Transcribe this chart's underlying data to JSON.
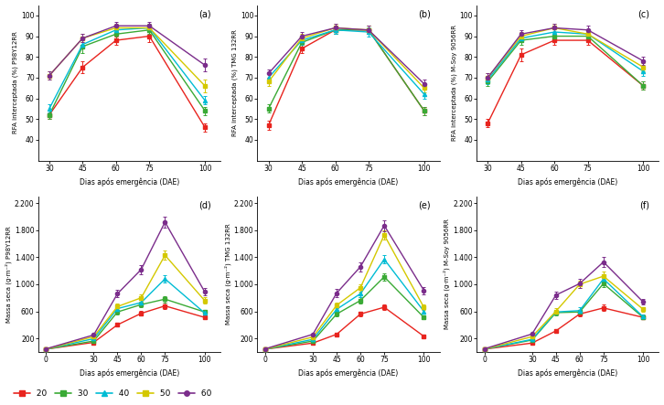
{
  "colors": {
    "20": "#e8241e",
    "30": "#3aaa35",
    "40": "#00bcd4",
    "50": "#d4c800",
    "60": "#7b2d8b"
  },
  "markers": {
    "20": "s",
    "30": "s",
    "40": "^",
    "50": "s",
    "60": "o"
  },
  "densities": [
    "20",
    "30",
    "40",
    "50",
    "60"
  ],
  "rfa_xvals": [
    30,
    45,
    60,
    75,
    100
  ],
  "ms_xvals": [
    0,
    30,
    45,
    60,
    75,
    100
  ],
  "rfa_a": {
    "20": [
      52,
      75,
      88,
      90,
      46
    ],
    "30": [
      52,
      85,
      91,
      93,
      54
    ],
    "40": [
      55,
      86,
      93,
      94,
      59
    ],
    "50": [
      71,
      89,
      94,
      94,
      66
    ],
    "60": [
      71,
      89,
      95,
      95,
      76
    ]
  },
  "rfa_a_err": {
    "20": [
      2,
      3,
      2,
      3,
      2
    ],
    "30": [
      2,
      3,
      2,
      2,
      2
    ],
    "40": [
      2,
      2,
      2,
      2,
      2
    ],
    "50": [
      2,
      2,
      2,
      2,
      3
    ],
    "60": [
      2,
      2,
      2,
      2,
      3
    ]
  },
  "rfa_b": {
    "20": [
      47,
      84,
      93,
      93,
      54
    ],
    "30": [
      55,
      87,
      93,
      93,
      54
    ],
    "40": [
      70,
      88,
      93,
      92,
      62
    ],
    "50": [
      68,
      89,
      94,
      93,
      65
    ],
    "60": [
      72,
      90,
      94,
      93,
      67
    ]
  },
  "rfa_b_err": {
    "20": [
      2,
      2,
      2,
      2,
      2
    ],
    "30": [
      2,
      2,
      2,
      2,
      2
    ],
    "40": [
      2,
      2,
      2,
      2,
      2
    ],
    "50": [
      2,
      2,
      2,
      2,
      2
    ],
    "60": [
      2,
      2,
      2,
      2,
      2
    ]
  },
  "rfa_c": {
    "20": [
      48,
      81,
      88,
      88,
      66
    ],
    "30": [
      68,
      88,
      90,
      90,
      66
    ],
    "40": [
      69,
      89,
      92,
      91,
      73
    ],
    "50": [
      70,
      90,
      94,
      91,
      75
    ],
    "60": [
      70,
      91,
      94,
      93,
      78
    ]
  },
  "rfa_c_err": {
    "20": [
      2,
      3,
      2,
      2,
      2
    ],
    "30": [
      2,
      2,
      2,
      2,
      2
    ],
    "40": [
      2,
      2,
      2,
      2,
      2
    ],
    "50": [
      2,
      2,
      2,
      2,
      2
    ],
    "60": [
      2,
      2,
      2,
      2,
      2
    ]
  },
  "ms_d": {
    "20": [
      40,
      140,
      400,
      570,
      680,
      510
    ],
    "30": [
      40,
      160,
      590,
      700,
      780,
      590
    ],
    "40": [
      40,
      195,
      640,
      730,
      1080,
      575
    ],
    "50": [
      40,
      225,
      670,
      800,
      1430,
      760
    ],
    "60": [
      45,
      250,
      860,
      1220,
      1920,
      890
    ]
  },
  "ms_d_err": {
    "20": [
      5,
      15,
      25,
      35,
      45,
      25
    ],
    "30": [
      5,
      15,
      35,
      40,
      45,
      35
    ],
    "40": [
      5,
      15,
      35,
      45,
      55,
      35
    ],
    "50": [
      5,
      15,
      45,
      55,
      70,
      45
    ],
    "60": [
      5,
      15,
      55,
      70,
      80,
      55
    ]
  },
  "ms_e": {
    "20": [
      40,
      130,
      260,
      560,
      660,
      230
    ],
    "30": [
      40,
      160,
      560,
      760,
      1110,
      510
    ],
    "40": [
      40,
      185,
      630,
      860,
      1370,
      600
    ],
    "50": [
      40,
      220,
      690,
      950,
      1730,
      660
    ],
    "60": [
      45,
      260,
      870,
      1260,
      1870,
      910
    ]
  },
  "ms_e_err": {
    "20": [
      5,
      15,
      25,
      35,
      45,
      15
    ],
    "30": [
      5,
      15,
      35,
      45,
      55,
      25
    ],
    "40": [
      5,
      15,
      35,
      55,
      60,
      35
    ],
    "50": [
      5,
      15,
      45,
      55,
      70,
      45
    ],
    "60": [
      5,
      15,
      55,
      70,
      80,
      55
    ]
  },
  "ms_f": {
    "20": [
      40,
      130,
      310,
      560,
      650,
      510
    ],
    "30": [
      40,
      175,
      580,
      590,
      1010,
      510
    ],
    "40": [
      40,
      185,
      590,
      610,
      1080,
      520
    ],
    "50": [
      40,
      225,
      600,
      1000,
      1120,
      630
    ],
    "60": [
      45,
      265,
      840,
      1010,
      1330,
      740
    ]
  },
  "ms_f_err": {
    "20": [
      5,
      15,
      25,
      35,
      45,
      25
    ],
    "30": [
      5,
      15,
      35,
      35,
      45,
      25
    ],
    "40": [
      5,
      15,
      35,
      45,
      55,
      35
    ],
    "50": [
      5,
      15,
      45,
      55,
      65,
      35
    ],
    "60": [
      5,
      15,
      55,
      65,
      75,
      45
    ]
  },
  "rfa_ylim": [
    30,
    105
  ],
  "rfa_yticks": [
    40,
    50,
    60,
    70,
    80,
    90,
    100
  ],
  "ms_ylim": [
    0,
    2300
  ],
  "ms_yticks": [
    200,
    600,
    1000,
    1400,
    1800,
    2200
  ],
  "ylabel_rfa_a": "RFA interceptada (%) P98Y12RR",
  "ylabel_rfa_b": "RFA interceptada (%) TMG 132RR",
  "ylabel_rfa_c": "RFA interceptada (%) M-Soy 9056RR",
  "ylabel_ms_d": "Massa seca (g·m⁻²) P98Y12RR",
  "ylabel_ms_e": "Massa seca (g·m⁻²) TMG 132RR",
  "ylabel_ms_f": "Massa seca (g·m⁻²) M-Soy 9056RR",
  "xlabel": "Dias após emergência (DAE)",
  "legend_labels": [
    "20",
    "30",
    "40",
    "50",
    "60"
  ]
}
